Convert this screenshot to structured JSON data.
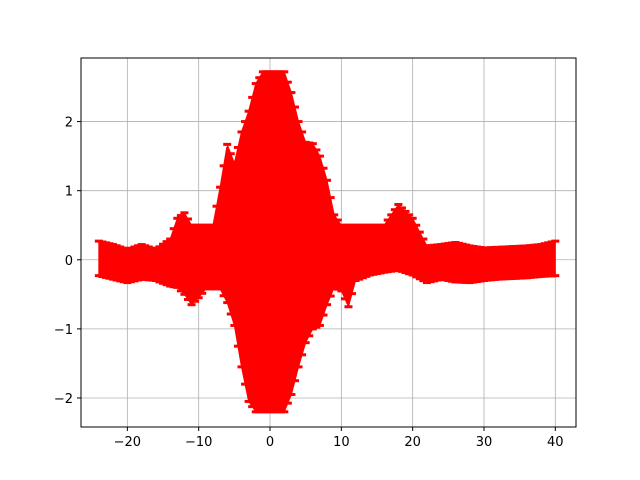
{
  "chart_data": {
    "type": "scatter",
    "title": "",
    "xlabel": "",
    "ylabel": "",
    "xlim": [
      -26.5,
      42.9
    ],
    "ylim": [
      -2.42,
      2.92
    ],
    "x_ticks": [
      -20,
      -10,
      0,
      10,
      20,
      30,
      40
    ],
    "x_tick_labels": [
      "−20",
      "−10",
      "0",
      "10",
      "20",
      "30",
      "40"
    ],
    "y_ticks": [
      -2,
      -1,
      0,
      1,
      2
    ],
    "y_tick_labels": [
      "−2",
      "−1",
      "0",
      "1",
      "2"
    ],
    "grid": true,
    "legend": "none",
    "marker": "_",
    "series": [
      {
        "color": "#ff0000",
        "envelope": {
          "x": [
            -24,
            -22,
            -20,
            -18,
            -16,
            -14,
            -13,
            -12,
            -11,
            -10,
            -9,
            -8,
            -7,
            -6,
            -5,
            -4,
            -3,
            -2,
            -1,
            0,
            1,
            2,
            3,
            4,
            5,
            6,
            7,
            8,
            9,
            10,
            11,
            12,
            14,
            16,
            18,
            20,
            22,
            24,
            26,
            28,
            30,
            32,
            34,
            36,
            38,
            40
          ],
          "upper": [
            0.27,
            0.22,
            0.15,
            0.22,
            0.15,
            0.3,
            0.6,
            0.68,
            0.5,
            0.5,
            0.5,
            0.5,
            1.05,
            1.67,
            1.4,
            1.85,
            2.15,
            2.55,
            2.72,
            2.72,
            2.72,
            2.72,
            2.42,
            2.0,
            1.7,
            1.68,
            1.5,
            1.15,
            0.65,
            0.5,
            0.5,
            0.5,
            0.5,
            0.5,
            0.8,
            0.6,
            0.2,
            0.22,
            0.25,
            0.2,
            0.17,
            0.18,
            0.19,
            0.2,
            0.22,
            0.27
          ],
          "lower": [
            -0.23,
            -0.28,
            -0.33,
            -0.28,
            -0.3,
            -0.38,
            -0.4,
            -0.5,
            -0.65,
            -0.55,
            -0.42,
            -0.42,
            -0.42,
            -0.62,
            -0.95,
            -1.55,
            -2.05,
            -2.2,
            -2.2,
            -2.2,
            -2.2,
            -2.2,
            -1.95,
            -1.55,
            -1.2,
            -1.0,
            -0.95,
            -0.65,
            -0.4,
            -0.45,
            -0.68,
            -0.3,
            -0.22,
            -0.18,
            -0.15,
            -0.22,
            -0.33,
            -0.28,
            -0.32,
            -0.33,
            -0.3,
            -0.28,
            -0.27,
            -0.26,
            -0.24,
            -0.23
          ]
        }
      }
    ]
  }
}
